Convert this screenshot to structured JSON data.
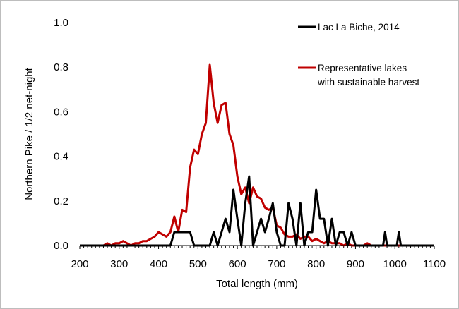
{
  "chart_data": {
    "type": "line",
    "title": "",
    "xlabel": "Total length (mm)",
    "ylabel": "Northern Pike / 1/2 net-night",
    "xlim": [
      200,
      1100
    ],
    "ylim": [
      0,
      1.0
    ],
    "x_ticks": [
      "200",
      "300",
      "400",
      "500",
      "600",
      "700",
      "800",
      "900",
      "1000",
      "1100"
    ],
    "y_ticks": [
      "0.0",
      "0.2",
      "0.4",
      "0.6",
      "0.8",
      "1.0"
    ],
    "grid": false,
    "legend_position": "top-right",
    "series": [
      {
        "name": "Lac La Biche, 2014",
        "color": "#000000",
        "points": [
          [
            200,
            0
          ],
          [
            430,
            0
          ],
          [
            440,
            0.06
          ],
          [
            450,
            0.06
          ],
          [
            460,
            0.06
          ],
          [
            470,
            0.06
          ],
          [
            480,
            0.06
          ],
          [
            490,
            0
          ],
          [
            500,
            0
          ],
          [
            510,
            0
          ],
          [
            520,
            0
          ],
          [
            530,
            0
          ],
          [
            540,
            0.06
          ],
          [
            550,
            0
          ],
          [
            560,
            0.06
          ],
          [
            570,
            0.12
          ],
          [
            580,
            0.06
          ],
          [
            590,
            0.25
          ],
          [
            600,
            0.12
          ],
          [
            610,
            0
          ],
          [
            620,
            0.19
          ],
          [
            630,
            0.31
          ],
          [
            640,
            0
          ],
          [
            650,
            0.06
          ],
          [
            660,
            0.12
          ],
          [
            670,
            0.06
          ],
          [
            680,
            0.12
          ],
          [
            690,
            0.19
          ],
          [
            700,
            0.06
          ],
          [
            710,
            0
          ],
          [
            720,
            0
          ],
          [
            730,
            0.19
          ],
          [
            740,
            0.12
          ],
          [
            750,
            0
          ],
          [
            760,
            0.19
          ],
          [
            770,
            0
          ],
          [
            780,
            0.06
          ],
          [
            790,
            0.06
          ],
          [
            800,
            0.25
          ],
          [
            810,
            0.12
          ],
          [
            820,
            0.12
          ],
          [
            830,
            0
          ],
          [
            840,
            0.12
          ],
          [
            850,
            0
          ],
          [
            860,
            0.06
          ],
          [
            870,
            0.06
          ],
          [
            880,
            0
          ],
          [
            890,
            0.06
          ],
          [
            900,
            0
          ],
          [
            910,
            0
          ],
          [
            970,
            0
          ],
          [
            975,
            0.06
          ],
          [
            980,
            0
          ],
          [
            1005,
            0
          ],
          [
            1010,
            0.06
          ],
          [
            1015,
            0
          ],
          [
            1100,
            0
          ]
        ]
      },
      {
        "name": "Representative lakes with sustainable harvest",
        "color": "#c00000",
        "points": [
          [
            200,
            0
          ],
          [
            260,
            0
          ],
          [
            270,
            0.01
          ],
          [
            280,
            0
          ],
          [
            290,
            0.01
          ],
          [
            300,
            0.01
          ],
          [
            310,
            0.02
          ],
          [
            320,
            0.01
          ],
          [
            330,
            0
          ],
          [
            340,
            0.01
          ],
          [
            350,
            0.01
          ],
          [
            360,
            0.02
          ],
          [
            370,
            0.02
          ],
          [
            380,
            0.03
          ],
          [
            390,
            0.04
          ],
          [
            400,
            0.06
          ],
          [
            410,
            0.05
          ],
          [
            420,
            0.04
          ],
          [
            430,
            0.06
          ],
          [
            440,
            0.13
          ],
          [
            450,
            0.06
          ],
          [
            460,
            0.16
          ],
          [
            470,
            0.15
          ],
          [
            480,
            0.35
          ],
          [
            490,
            0.43
          ],
          [
            500,
            0.41
          ],
          [
            510,
            0.5
          ],
          [
            520,
            0.55
          ],
          [
            530,
            0.81
          ],
          [
            540,
            0.64
          ],
          [
            550,
            0.55
          ],
          [
            560,
            0.63
          ],
          [
            570,
            0.64
          ],
          [
            580,
            0.5
          ],
          [
            590,
            0.45
          ],
          [
            600,
            0.31
          ],
          [
            610,
            0.23
          ],
          [
            620,
            0.26
          ],
          [
            630,
            0.19
          ],
          [
            640,
            0.26
          ],
          [
            650,
            0.22
          ],
          [
            660,
            0.21
          ],
          [
            670,
            0.17
          ],
          [
            680,
            0.16
          ],
          [
            690,
            0.17
          ],
          [
            700,
            0.09
          ],
          [
            710,
            0.08
          ],
          [
            720,
            0.05
          ],
          [
            730,
            0.04
          ],
          [
            740,
            0.04
          ],
          [
            750,
            0.05
          ],
          [
            760,
            0.03
          ],
          [
            770,
            0.04
          ],
          [
            780,
            0.04
          ],
          [
            790,
            0.02
          ],
          [
            800,
            0.03
          ],
          [
            810,
            0.02
          ],
          [
            820,
            0.01
          ],
          [
            830,
            0.02
          ],
          [
            840,
            0.01
          ],
          [
            850,
            0.01
          ],
          [
            860,
            0.01
          ],
          [
            870,
            0
          ],
          [
            880,
            0.01
          ],
          [
            890,
            0
          ],
          [
            900,
            0
          ],
          [
            920,
            0
          ],
          [
            930,
            0.01
          ],
          [
            940,
            0
          ],
          [
            1100,
            0
          ]
        ]
      }
    ]
  }
}
